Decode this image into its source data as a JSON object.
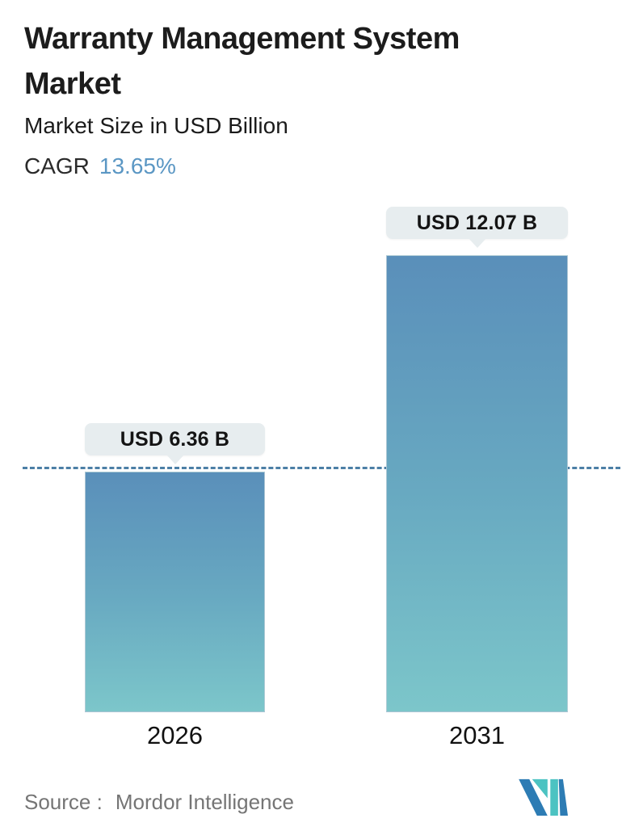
{
  "header": {
    "title": "Warranty Management System Market",
    "subtitle": "Market Size in USD Billion",
    "cagr_label": "CAGR",
    "cagr_value": "13.65%"
  },
  "chart_data": {
    "type": "bar",
    "categories": [
      "2026",
      "2031"
    ],
    "values": [
      6.36,
      12.07
    ],
    "value_labels": [
      "USD 6.36 B",
      "USD 12.07 B"
    ],
    "title": "Warranty Management System Market",
    "subtitle": "Market Size in USD Billion",
    "unit": "USD Billion",
    "cagr_percent": 13.65,
    "ylim": [
      0,
      12.07
    ],
    "reference_line_at": 6.36,
    "reference_line_style": "dashed",
    "grid": false,
    "legend": "none",
    "colors": {
      "bar_gradient_top": "#5a8fba",
      "bar_gradient_bottom": "#7cc6ca",
      "dashed_line": "#4c7fa6",
      "tooltip_background": "#e7edef",
      "accent_text": "#5b97c4",
      "title_text": "#1c1c1c",
      "source_text": "#757575"
    }
  },
  "bars": [
    {
      "year": "2026",
      "label": "USD 6.36 B"
    },
    {
      "year": "2031",
      "label": "USD 12.07 B"
    }
  ],
  "footer": {
    "source_label": "Source :",
    "source_value": "Mordor Intelligence",
    "logo": "mordor-intelligence-logo",
    "logo_colors": {
      "blue": "#2d7cb4",
      "teal": "#4cc3c2"
    }
  }
}
